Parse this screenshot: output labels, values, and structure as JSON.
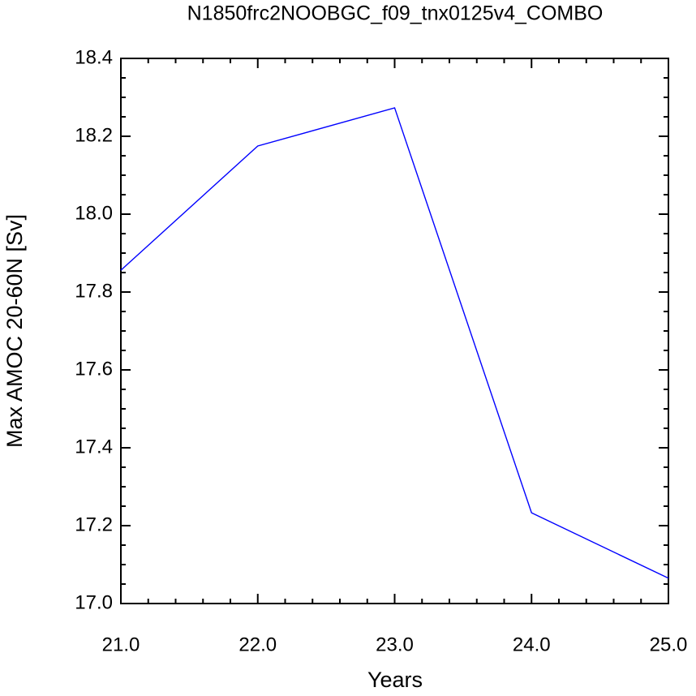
{
  "chart_data": {
    "type": "line",
    "title": "N1850frc2NOOBGC_f09_tnx0125v4_COMBO",
    "x_label": "Years",
    "y_label": "Max AMOC 20-60N [Sv]",
    "x": [
      21,
      22,
      23,
      24,
      25
    ],
    "series": [
      {
        "name": "Max AMOC",
        "color": "#0000ff",
        "values": [
          17.856,
          18.175,
          18.273,
          17.233,
          17.065
        ]
      }
    ],
    "xlim": [
      21,
      25
    ],
    "xticks": [
      {
        "value": 21,
        "label": "21.0"
      },
      {
        "value": 22,
        "label": "22.0"
      },
      {
        "value": 23,
        "label": "23.0"
      },
      {
        "value": 24,
        "label": "24.0"
      },
      {
        "value": 25,
        "label": "25.0"
      }
    ],
    "ylim": [
      17,
      18.4
    ],
    "yticks": [
      {
        "value": 17,
        "label": "17.0"
      },
      17.2,
      17.4,
      17.6,
      17.8,
      {
        "value": 18,
        "label": "18.0"
      },
      18.2,
      18.4
    ],
    "x_minor_per_major": 4,
    "y_minor_per_major": 3,
    "grid": false
  }
}
